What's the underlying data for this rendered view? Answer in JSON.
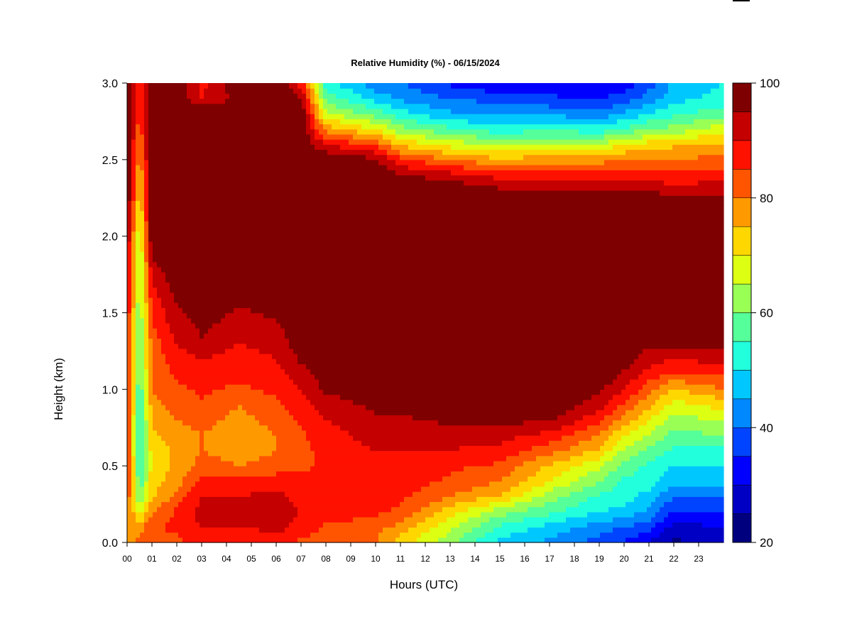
{
  "chart_data": {
    "type": "heatmap",
    "title": "Relative Humidity (%) - 06/15/2024",
    "xlabel": "Hours (UTC)",
    "ylabel": "Height (km)",
    "xlim": [
      0,
      24
    ],
    "ylim": [
      0,
      3.0
    ],
    "x_tick_labels": [
      "00",
      "01",
      "02",
      "03",
      "04",
      "05",
      "06",
      "07",
      "08",
      "09",
      "10",
      "11",
      "12",
      "13",
      "14",
      "15",
      "16",
      "17",
      "18",
      "19",
      "20",
      "21",
      "22",
      "23"
    ],
    "y_tick_labels": [
      "0.0",
      "0.5",
      "1.0",
      "1.5",
      "2.0",
      "2.5",
      "3.0"
    ],
    "y_ticks": [
      0.0,
      0.5,
      1.0,
      1.5,
      2.0,
      2.5,
      3.0
    ],
    "colorbar": {
      "min": 20,
      "max": 100,
      "step": 5,
      "tick_labels": [
        "20",
        "40",
        "60",
        "80",
        "100"
      ],
      "tick_values": [
        20,
        40,
        60,
        80,
        100
      ],
      "colors": [
        "#00007f",
        "#0000c4",
        "#0000ff",
        "#0044ff",
        "#0088ff",
        "#00c8ff",
        "#22ffdd",
        "#55ff99",
        "#99ff55",
        "#ddff11",
        "#ffd700",
        "#ff9900",
        "#ff5500",
        "#ff1100",
        "#c40000",
        "#7f0000"
      ]
    },
    "height_profile_km": [
      0.0,
      0.1,
      0.2,
      0.3,
      0.4,
      0.5,
      0.6,
      0.7,
      0.8,
      0.9,
      1.0,
      1.1,
      1.2,
      1.3,
      1.5,
      1.7,
      2.0,
      2.2,
      2.3,
      2.4,
      2.5,
      2.6,
      2.7,
      2.8,
      2.9,
      3.0
    ],
    "time_profiles_hr": [
      {
        "t": 0.0,
        "rh": [
          78,
          80,
          82,
          84,
          86,
          88,
          88,
          88,
          88,
          88,
          88,
          88,
          88,
          88,
          90,
          92,
          96,
          100,
          100,
          100,
          100,
          100,
          100,
          100,
          100,
          100
        ]
      },
      {
        "t": 0.5,
        "rh": [
          82,
          78,
          68,
          60,
          56,
          54,
          52,
          52,
          52,
          54,
          55,
          56,
          58,
          58,
          60,
          62,
          64,
          70,
          72,
          74,
          78,
          80,
          82,
          84,
          84,
          84
        ]
      },
      {
        "t": 1.0,
        "rh": [
          84,
          84,
          80,
          74,
          72,
          72,
          72,
          74,
          76,
          78,
          80,
          80,
          82,
          82,
          86,
          90,
          100,
          100,
          100,
          100,
          100,
          100,
          100,
          100,
          100,
          100
        ]
      },
      {
        "t": 2.0,
        "rh": [
          84,
          86,
          86,
          82,
          78,
          76,
          76,
          78,
          80,
          82,
          84,
          86,
          88,
          90,
          94,
          98,
          100,
          100,
          100,
          100,
          100,
          100,
          100,
          100,
          100,
          100
        ]
      },
      {
        "t": 3.0,
        "rh": [
          86,
          90,
          92,
          90,
          86,
          82,
          80,
          80,
          82,
          84,
          86,
          88,
          90,
          94,
          98,
          100,
          100,
          100,
          100,
          100,
          100,
          100,
          100,
          100,
          90,
          88
        ]
      },
      {
        "t": 4.5,
        "rh": [
          84,
          90,
          92,
          90,
          86,
          80,
          78,
          76,
          78,
          80,
          84,
          86,
          88,
          90,
          94,
          98,
          100,
          100,
          100,
          100,
          100,
          100,
          100,
          100,
          96,
          100
        ]
      },
      {
        "t": 6.0,
        "rh": [
          86,
          92,
          94,
          92,
          88,
          82,
          80,
          80,
          82,
          84,
          86,
          88,
          90,
          92,
          96,
          100,
          100,
          100,
          100,
          100,
          100,
          100,
          100,
          100,
          100,
          100
        ]
      },
      {
        "t": 7.0,
        "rh": [
          84,
          88,
          90,
          88,
          86,
          84,
          84,
          84,
          86,
          88,
          90,
          92,
          96,
          98,
          100,
          100,
          100,
          100,
          100,
          100,
          100,
          100,
          100,
          100,
          96,
          88
        ]
      },
      {
        "t": 8.0,
        "rh": [
          82,
          84,
          88,
          88,
          86,
          86,
          86,
          88,
          90,
          92,
          96,
          98,
          100,
          100,
          100,
          100,
          100,
          100,
          100,
          100,
          100,
          90,
          78,
          66,
          58,
          52
        ]
      },
      {
        "t": 10.0,
        "rh": [
          80,
          82,
          86,
          88,
          88,
          88,
          90,
          92,
          94,
          96,
          100,
          100,
          100,
          100,
          100,
          100,
          100,
          100,
          100,
          100,
          96,
          84,
          70,
          58,
          48,
          42
        ]
      },
      {
        "t": 11.0,
        "rh": [
          72,
          78,
          84,
          86,
          88,
          88,
          90,
          92,
          94,
          96,
          100,
          100,
          100,
          100,
          100,
          100,
          100,
          100,
          100,
          96,
          86,
          74,
          62,
          52,
          44,
          40
        ]
      },
      {
        "t": 13.0,
        "rh": [
          62,
          66,
          72,
          80,
          84,
          86,
          90,
          92,
          96,
          100,
          100,
          100,
          100,
          100,
          100,
          100,
          100,
          100,
          100,
          92,
          80,
          68,
          56,
          46,
          40,
          34
        ]
      },
      {
        "t": 15.0,
        "rh": [
          48,
          54,
          62,
          74,
          80,
          84,
          88,
          92,
          96,
          100,
          100,
          100,
          100,
          100,
          100,
          100,
          100,
          100,
          96,
          88,
          76,
          64,
          52,
          44,
          38,
          30
        ]
      },
      {
        "t": 17.0,
        "rh": [
          44,
          48,
          56,
          62,
          70,
          74,
          82,
          88,
          96,
          100,
          100,
          100,
          100,
          100,
          100,
          100,
          100,
          100,
          96,
          88,
          78,
          66,
          54,
          44,
          36,
          32
        ]
      },
      {
        "t": 19.0,
        "rh": [
          38,
          42,
          50,
          54,
          60,
          66,
          74,
          80,
          86,
          92,
          96,
          100,
          100,
          100,
          100,
          100,
          100,
          100,
          96,
          88,
          78,
          66,
          52,
          42,
          34,
          30
        ]
      },
      {
        "t": 20.0,
        "rh": [
          34,
          40,
          48,
          52,
          54,
          58,
          64,
          70,
          78,
          84,
          90,
          94,
          98,
          100,
          100,
          100,
          100,
          100,
          96,
          88,
          80,
          70,
          56,
          46,
          38,
          32
        ]
      },
      {
        "t": 21.0,
        "rh": [
          30,
          36,
          44,
          48,
          52,
          54,
          58,
          64,
          70,
          76,
          82,
          88,
          92,
          96,
          100,
          100,
          100,
          100,
          96,
          88,
          80,
          72,
          60,
          50,
          42,
          38
        ]
      },
      {
        "t": 22.0,
        "rh": [
          24,
          28,
          34,
          40,
          46,
          50,
          54,
          58,
          62,
          68,
          74,
          84,
          90,
          96,
          100,
          100,
          100,
          100,
          92,
          86,
          80,
          74,
          62,
          54,
          48,
          46
        ]
      },
      {
        "t": 24.0,
        "rh": [
          26,
          30,
          34,
          40,
          46,
          50,
          54,
          60,
          66,
          72,
          80,
          86,
          92,
          96,
          100,
          100,
          100,
          100,
          94,
          88,
          82,
          76,
          68,
          58,
          52,
          50
        ]
      }
    ]
  }
}
